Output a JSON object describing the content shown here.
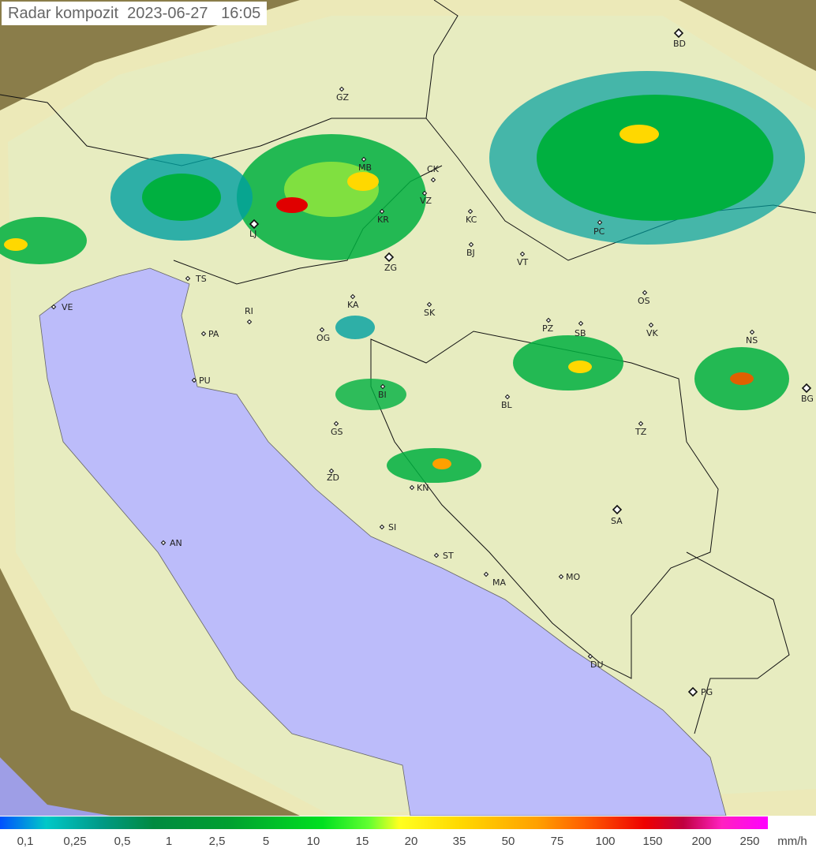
{
  "title": "Radar kompozit  2023-06-27   16:05",
  "legend": {
    "labels": [
      "0,1",
      "0,25",
      "0,5",
      "1",
      "2,5",
      "5",
      "10",
      "15",
      "20",
      "35",
      "50",
      "75",
      "100",
      "150",
      "200",
      "250"
    ],
    "unit": "mm/h"
  },
  "colors": {
    "land": "#e9e6b0",
    "sea": "#bcbcfa",
    "outside": "#8a7d4a",
    "rain_light": "#00a0a0",
    "rain_moderate": "#00b040",
    "rain_heavy": "#ffd800",
    "rain_intense": "#e00000"
  },
  "cities": [
    {
      "code": "GZ",
      "type": "small"
    },
    {
      "code": "BD",
      "type": "capital"
    },
    {
      "code": "MB",
      "type": "small"
    },
    {
      "code": "CK",
      "type": "small"
    },
    {
      "code": "LJ",
      "type": "capital"
    },
    {
      "code": "KR",
      "type": "small"
    },
    {
      "code": "VZ",
      "type": "small"
    },
    {
      "code": "KC",
      "type": "small"
    },
    {
      "code": "PC",
      "type": "small"
    },
    {
      "code": "ZG",
      "type": "capital"
    },
    {
      "code": "BJ",
      "type": "small"
    },
    {
      "code": "VT",
      "type": "small"
    },
    {
      "code": "TS",
      "type": "small"
    },
    {
      "code": "VE",
      "type": "small"
    },
    {
      "code": "RI",
      "type": "small"
    },
    {
      "code": "KA",
      "type": "small"
    },
    {
      "code": "SK",
      "type": "small"
    },
    {
      "code": "OS",
      "type": "small"
    },
    {
      "code": "PA",
      "type": "small"
    },
    {
      "code": "OG",
      "type": "small"
    },
    {
      "code": "PZ",
      "type": "small"
    },
    {
      "code": "SB",
      "type": "small"
    },
    {
      "code": "VK",
      "type": "small"
    },
    {
      "code": "NS",
      "type": "small"
    },
    {
      "code": "PU",
      "type": "small"
    },
    {
      "code": "BI",
      "type": "small"
    },
    {
      "code": "BL",
      "type": "small"
    },
    {
      "code": "BG",
      "type": "capital"
    },
    {
      "code": "GS",
      "type": "small"
    },
    {
      "code": "TZ",
      "type": "small"
    },
    {
      "code": "ZD",
      "type": "small"
    },
    {
      "code": "KN",
      "type": "small"
    },
    {
      "code": "SA",
      "type": "capital"
    },
    {
      "code": "SI",
      "type": "small"
    },
    {
      "code": "AN",
      "type": "small"
    },
    {
      "code": "ST",
      "type": "small"
    },
    {
      "code": "MA",
      "type": "small"
    },
    {
      "code": "MO",
      "type": "small"
    },
    {
      "code": "DU",
      "type": "small"
    },
    {
      "code": "PG",
      "type": "capital"
    }
  ]
}
